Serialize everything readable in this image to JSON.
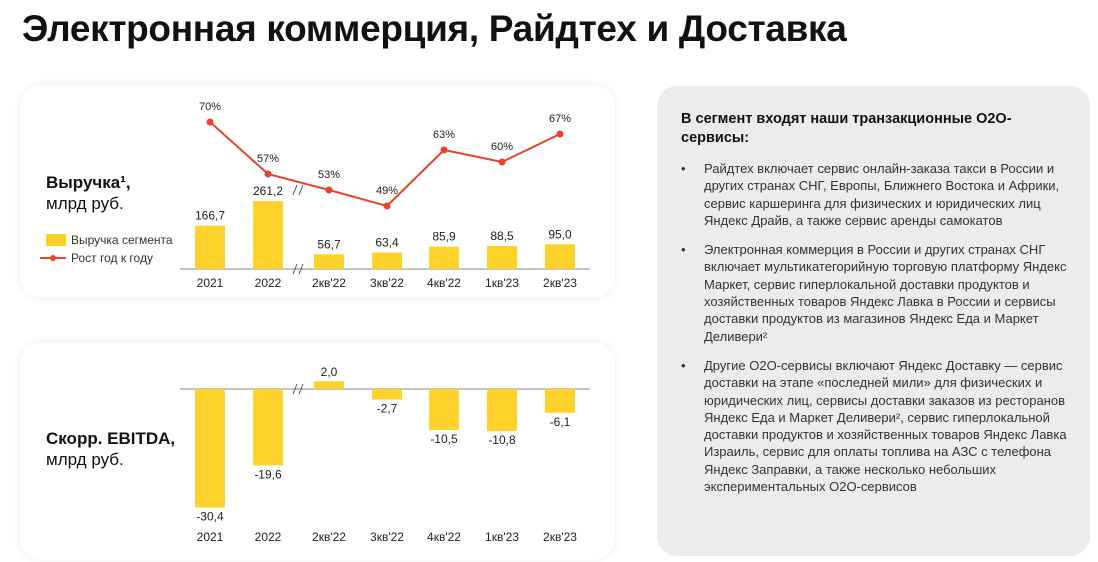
{
  "title": "Электронная коммерция, Райдтех и Доставка",
  "colors": {
    "bar": "#FDD22B",
    "line": "#E8432B",
    "panel": "#ececec"
  },
  "chart_data": [
    {
      "type": "bar+line",
      "label_main": "Выручка¹,",
      "label_unit": "млрд руб.",
      "categories": [
        "2021",
        "2022",
        "2кв'22",
        "3кв'22",
        "4кв'22",
        "1кв'23",
        "2кв'23"
      ],
      "axis_break_after": "2022",
      "series": [
        {
          "name": "Выручка сегмента",
          "type": "bar",
          "values": [
            166.7,
            261.2,
            56.7,
            63.4,
            85.9,
            88.5,
            95.0
          ],
          "labels": [
            "166,7",
            "261,2",
            "56,7",
            "63,4",
            "85,9",
            "88,5",
            "95,0"
          ]
        },
        {
          "name": "Рост год к году",
          "type": "line",
          "values": [
            70,
            57,
            53,
            49,
            63,
            60,
            67
          ],
          "labels": [
            "70%",
            "57%",
            "53%",
            "49%",
            "63%",
            "60%",
            "67%"
          ]
        }
      ]
    },
    {
      "type": "bar",
      "label_main": "Скорр. EBITDA,",
      "label_unit": "млрд руб.",
      "categories": [
        "2021",
        "2022",
        "2кв'22",
        "3кв'22",
        "4кв'22",
        "1кв'23",
        "2кв'23"
      ],
      "axis_break_after": "2022",
      "values": [
        -30.4,
        -19.6,
        2.0,
        -2.7,
        -10.5,
        -10.8,
        -6.1
      ],
      "labels": [
        "-30,4",
        "-19,6",
        "2,0",
        "-2,7",
        "-10,5",
        "-10,8",
        "-6,1"
      ]
    }
  ],
  "panel": {
    "heading": "В сегмент входят наши транзакционные O2O-сервисы:",
    "items": [
      "Райдтех включает сервис онлайн-заказа такси в России и других странах СНГ, Европы, Ближнего Востока и Африки, сервис каршеринга для физических и юридических лиц Яндекс Драйв, а также сервис аренды самокатов",
      "Электронная коммерция в России и других странах СНГ включает мультикатегорийную торговую платформу Яндекс Маркет, сервис гиперлокальной доставки продуктов и хозяйственных товаров Яндекс Лавка в России и сервисы доставки продуктов из магазинов Яндекс Еда и Маркет Деливери²",
      "Другие O2O-сервисы включают Яндекс Доставку — сервис доставки на этапе «последней мили» для физических и юридических лиц, сервисы доставки заказов из ресторанов Яндекс Еда и Маркет Деливери², сервис гиперлокальной доставки продуктов и хозяйственных товаров Яндекс Лавка Израиль, сервис для оплаты топлива на АЗС с телефона Яндекс Заправки, а также несколько небольших экспериментальных O2O-сервисов"
    ]
  }
}
